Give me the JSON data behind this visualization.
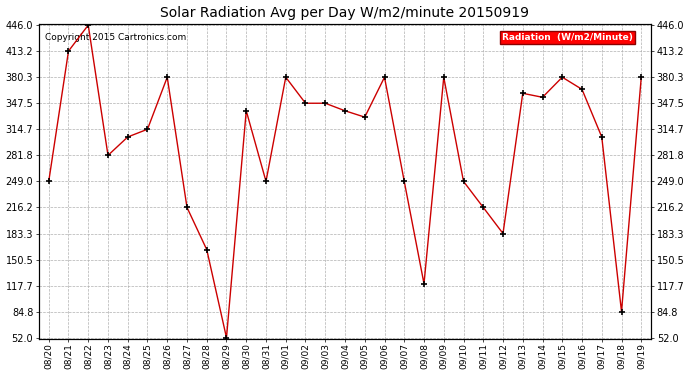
{
  "title": "Solar Radiation Avg per Day W/m2/minute 20150919",
  "copyright": "Copyright 2015 Cartronics.com",
  "legend_label": "Radiation  (W/m2/Minute)",
  "dates": [
    "08/20",
    "08/21",
    "08/22",
    "08/23",
    "08/24",
    "08/25",
    "08/26",
    "08/27",
    "08/28",
    "08/29",
    "08/30",
    "08/31",
    "09/01",
    "09/02",
    "09/03",
    "09/04",
    "09/05",
    "09/06",
    "09/07",
    "09/08",
    "09/09",
    "09/10",
    "09/11",
    "09/12",
    "09/13",
    "09/14",
    "09/15",
    "09/16",
    "09/17",
    "09/18",
    "09/19"
  ],
  "values": [
    249.0,
    413.2,
    446.0,
    281.8,
    305.0,
    314.7,
    380.3,
    216.2,
    163.0,
    52.0,
    338.0,
    249.0,
    380.3,
    347.5,
    347.5,
    338.0,
    330.0,
    380.3,
    249.0,
    120.0,
    380.3,
    249.0,
    216.2,
    183.3,
    360.0,
    355.0,
    380.3,
    365.0,
    305.0,
    84.8,
    380.3
  ],
  "line_color": "#cc0000",
  "marker_color": "#000000",
  "bg_color": "#ffffff",
  "grid_color": "#b0b0b0",
  "ymin": 52.0,
  "ymax": 446.0,
  "yticks": [
    52.0,
    84.8,
    117.7,
    150.5,
    183.3,
    216.2,
    249.0,
    281.8,
    314.7,
    347.5,
    380.3,
    413.2,
    446.0
  ]
}
